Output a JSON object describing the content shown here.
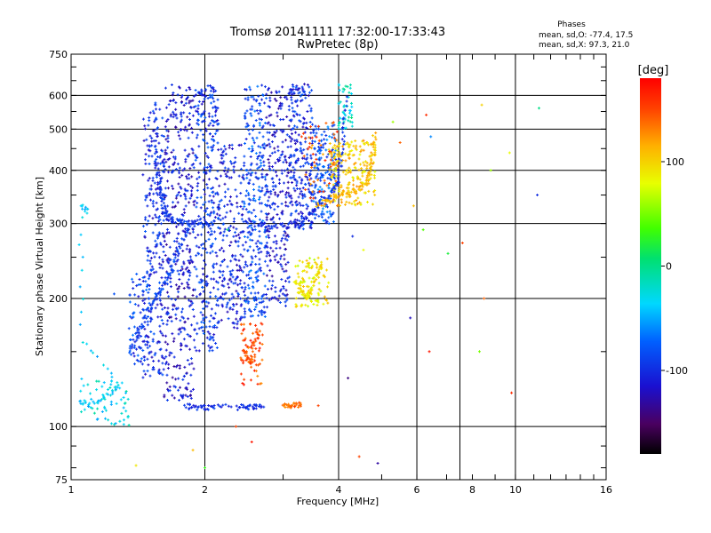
{
  "chart_data": {
    "type": "scatter",
    "title": "Tromsø 20141111 17:32:00-17:33:43",
    "subtitle": "RwPretec (8p)",
    "xlabel": "Frequency [MHz]",
    "ylabel": "Stationary phase Virtual Height [km]",
    "xscale": "log",
    "yscale": "log",
    "xlim": [
      1,
      16
    ],
    "ylim": [
      75,
      750
    ],
    "x_ticks": [
      1,
      2,
      4,
      6,
      8,
      10,
      16
    ],
    "x_tick_labels": [
      "1",
      "2",
      "4",
      "6",
      "8",
      "10",
      "16"
    ],
    "x_grid": [
      2,
      4,
      6,
      7.5,
      10
    ],
    "y_ticks": [
      75,
      100,
      200,
      300,
      400,
      500,
      600,
      750
    ],
    "y_tick_labels": [
      "75",
      "100",
      "200",
      "300",
      "400",
      "500",
      "600",
      "750"
    ],
    "y_grid": [
      100,
      200,
      300,
      400,
      500,
      600
    ],
    "grid": true,
    "stats_title": "Phases",
    "stats_lines": [
      "mean, sd,O:  -77.4, 17.5",
      "mean, sd,X:  97.3, 21.0"
    ],
    "colorbar": {
      "label": "[deg]",
      "range": [
        -180,
        180
      ],
      "ticks": [
        100,
        0,
        -100
      ],
      "tick_labels": [
        "100",
        "0",
        "-100"
      ]
    },
    "traces": [
      {
        "name_hint": "O-mode F2 trace",
        "phase": -95,
        "points": [
          [
            1.55,
            580
          ],
          [
            1.55,
            500
          ],
          [
            1.55,
            420
          ],
          [
            1.58,
            380
          ],
          [
            1.6,
            350
          ],
          [
            1.62,
            320
          ],
          [
            1.65,
            310
          ],
          [
            1.7,
            305
          ],
          [
            1.8,
            302
          ],
          [
            1.9,
            300
          ],
          [
            2.0,
            298
          ],
          [
            2.1,
            300
          ]
        ]
      },
      {
        "name_hint": "O-mode low ramp",
        "phase": -90,
        "points": [
          [
            1.35,
            150
          ],
          [
            1.4,
            160
          ],
          [
            1.45,
            175
          ],
          [
            1.5,
            190
          ],
          [
            1.55,
            200
          ],
          [
            1.6,
            210
          ],
          [
            1.65,
            225
          ],
          [
            1.7,
            240
          ],
          [
            1.75,
            260
          ],
          [
            1.8,
            280
          ],
          [
            1.85,
            300
          ]
        ]
      },
      {
        "name_hint": "F2 cusp O",
        "phase": -100,
        "points": [
          [
            2.5,
            300
          ],
          [
            2.7,
            298
          ],
          [
            2.9,
            296
          ],
          [
            3.1,
            298
          ],
          [
            3.3,
            305
          ],
          [
            3.5,
            320
          ],
          [
            3.7,
            340
          ],
          [
            3.9,
            360
          ],
          [
            4.0,
            380
          ],
          [
            4.05,
            420
          ],
          [
            4.1,
            500
          ],
          [
            4.15,
            600
          ]
        ]
      },
      {
        "name_hint": "X-mode F2 trace",
        "phase": 110,
        "points": [
          [
            3.6,
            330
          ],
          [
            3.8,
            340
          ],
          [
            4.0,
            350
          ],
          [
            4.2,
            355
          ],
          [
            4.4,
            360
          ],
          [
            4.6,
            370
          ],
          [
            4.7,
            390
          ],
          [
            4.75,
            420
          ],
          [
            4.8,
            450
          ],
          [
            4.82,
            490
          ]
        ]
      },
      {
        "name_hint": "Es O-mode",
        "phase": -100,
        "points": [
          [
            1.8,
            112
          ],
          [
            1.9,
            111
          ],
          [
            2.0,
            111
          ],
          [
            2.1,
            111
          ],
          [
            2.4,
            111
          ],
          [
            2.5,
            111
          ],
          [
            2.6,
            111
          ],
          [
            2.7,
            111
          ]
        ]
      },
      {
        "name_hint": "Es X-mode",
        "phase": 140,
        "points": [
          [
            3.0,
            112
          ],
          [
            3.1,
            112
          ],
          [
            3.2,
            112
          ],
          [
            3.3,
            113
          ]
        ]
      },
      {
        "name_hint": "F1 X patch",
        "phase": 95,
        "points": [
          [
            3.2,
            220
          ],
          [
            3.3,
            210
          ],
          [
            3.4,
            200
          ],
          [
            3.5,
            215
          ],
          [
            3.6,
            230
          ],
          [
            3.7,
            240
          ]
        ]
      },
      {
        "name_hint": "E region X",
        "phase": 145,
        "points": [
          [
            2.45,
            150
          ],
          [
            2.5,
            145
          ],
          [
            2.55,
            140
          ],
          [
            2.6,
            160
          ],
          [
            2.65,
            170
          ]
        ]
      },
      {
        "name_hint": "low freq spread",
        "phase": -40,
        "points": [
          [
            1.05,
            115
          ],
          [
            1.1,
            112
          ],
          [
            1.2,
            118
          ],
          [
            1.3,
            125
          ],
          [
            1.06,
            160
          ],
          [
            1.05,
            330
          ],
          [
            1.1,
            320
          ]
        ]
      }
    ],
    "scatter_bands": [
      {
        "x": [
          1.45,
          1.62
        ],
        "y": [
          130,
          560
        ],
        "phase": -100,
        "n": 260
      },
      {
        "x": [
          1.62,
          1.9
        ],
        "y": [
          115,
          640
        ],
        "phase": -110,
        "n": 420
      },
      {
        "x": [
          1.9,
          2.15
        ],
        "y": [
          150,
          640
        ],
        "phase": -95,
        "n": 330
      },
      {
        "x": [
          2.15,
          2.45
        ],
        "y": [
          170,
          460
        ],
        "phase": -105,
        "n": 220
      },
      {
        "x": [
          2.45,
          2.75
        ],
        "y": [
          180,
          640
        ],
        "phase": -85,
        "n": 300
      },
      {
        "x": [
          2.75,
          3.1
        ],
        "y": [
          190,
          640
        ],
        "phase": -110,
        "n": 260
      },
      {
        "x": [
          3.1,
          3.5
        ],
        "y": [
          290,
          640
        ],
        "phase": -100,
        "n": 250
      },
      {
        "x": [
          3.5,
          3.95
        ],
        "y": [
          300,
          520
        ],
        "phase": -80,
        "n": 170
      },
      {
        "x": [
          3.2,
          3.8
        ],
        "y": [
          190,
          250
        ],
        "phase": 90,
        "n": 100
      },
      {
        "x": [
          3.8,
          4.85
        ],
        "y": [
          330,
          470
        ],
        "phase": 100,
        "n": 200
      },
      {
        "x": [
          3.3,
          4.0
        ],
        "y": [
          330,
          520
        ],
        "phase": 140,
        "n": 60
      },
      {
        "x": [
          1.35,
          1.5
        ],
        "y": [
          140,
          230
        ],
        "phase": -90,
        "n": 70
      },
      {
        "x": [
          1.05,
          1.35
        ],
        "y": [
          100,
          130
        ],
        "phase": -30,
        "n": 60
      },
      {
        "x": [
          2.4,
          2.7
        ],
        "y": [
          125,
          175
        ],
        "phase": 150,
        "n": 60
      },
      {
        "x": [
          4.0,
          4.3
        ],
        "y": [
          500,
          640
        ],
        "phase": -20,
        "n": 50
      }
    ],
    "outliers": [
      [
        4.55,
        470,
        130
      ],
      [
        5.3,
        520,
        60
      ],
      [
        6.3,
        540,
        160
      ],
      [
        6.45,
        480,
        -60
      ],
      [
        5.9,
        330,
        110
      ],
      [
        6.2,
        290,
        40
      ],
      [
        7.6,
        270,
        150
      ],
      [
        7.05,
        255,
        20
      ],
      [
        4.3,
        280,
        -100
      ],
      [
        4.55,
        260,
        80
      ],
      [
        5.8,
        180,
        -120
      ],
      [
        6.4,
        150,
        170
      ],
      [
        8.3,
        150,
        50
      ],
      [
        8.5,
        200,
        140
      ],
      [
        9.8,
        120,
        160
      ],
      [
        4.9,
        82,
        -130
      ],
      [
        4.2,
        130,
        -140
      ],
      [
        2.35,
        100,
        150
      ],
      [
        2.55,
        92,
        170
      ],
      [
        1.88,
        88,
        110
      ],
      [
        1.4,
        81,
        90
      ],
      [
        2.0,
        80,
        30
      ],
      [
        11.2,
        350,
        -100
      ],
      [
        11.3,
        560,
        0
      ],
      [
        8.4,
        570,
        100
      ],
      [
        9.7,
        440,
        80
      ],
      [
        8.8,
        400,
        60
      ],
      [
        5.5,
        465,
        140
      ],
      [
        3.6,
        112,
        150
      ],
      [
        2.25,
        290,
        10
      ],
      [
        1.25,
        205,
        -80
      ],
      [
        4.45,
        85,
        150
      ]
    ]
  }
}
